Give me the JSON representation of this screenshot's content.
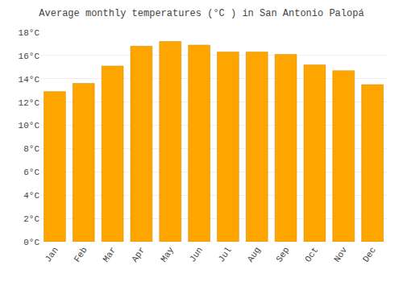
{
  "chart_data": {
    "type": "bar",
    "title": "Average monthly temperatures (°C ) in San Antonio Palopá",
    "categories": [
      "Jan",
      "Feb",
      "Mar",
      "Apr",
      "May",
      "Jun",
      "Jul",
      "Aug",
      "Sep",
      "Oct",
      "Nov",
      "Dec"
    ],
    "values": [
      12.9,
      13.6,
      15.1,
      16.8,
      17.2,
      16.9,
      16.3,
      16.3,
      16.1,
      15.2,
      14.7,
      13.5
    ],
    "color": "#FFA500",
    "ylim": [
      0,
      18
    ],
    "yticks": [
      {
        "value": 0,
        "label": "0°C"
      },
      {
        "value": 2,
        "label": "2°C"
      },
      {
        "value": 4,
        "label": "4°C"
      },
      {
        "value": 6,
        "label": "6°C"
      },
      {
        "value": 8,
        "label": "8°C"
      },
      {
        "value": 10,
        "label": "10°C"
      },
      {
        "value": 12,
        "label": "12°C"
      },
      {
        "value": 14,
        "label": "14°C"
      },
      {
        "value": 16,
        "label": "16°C"
      },
      {
        "value": 18,
        "label": "18°C"
      }
    ],
    "grid": true
  }
}
